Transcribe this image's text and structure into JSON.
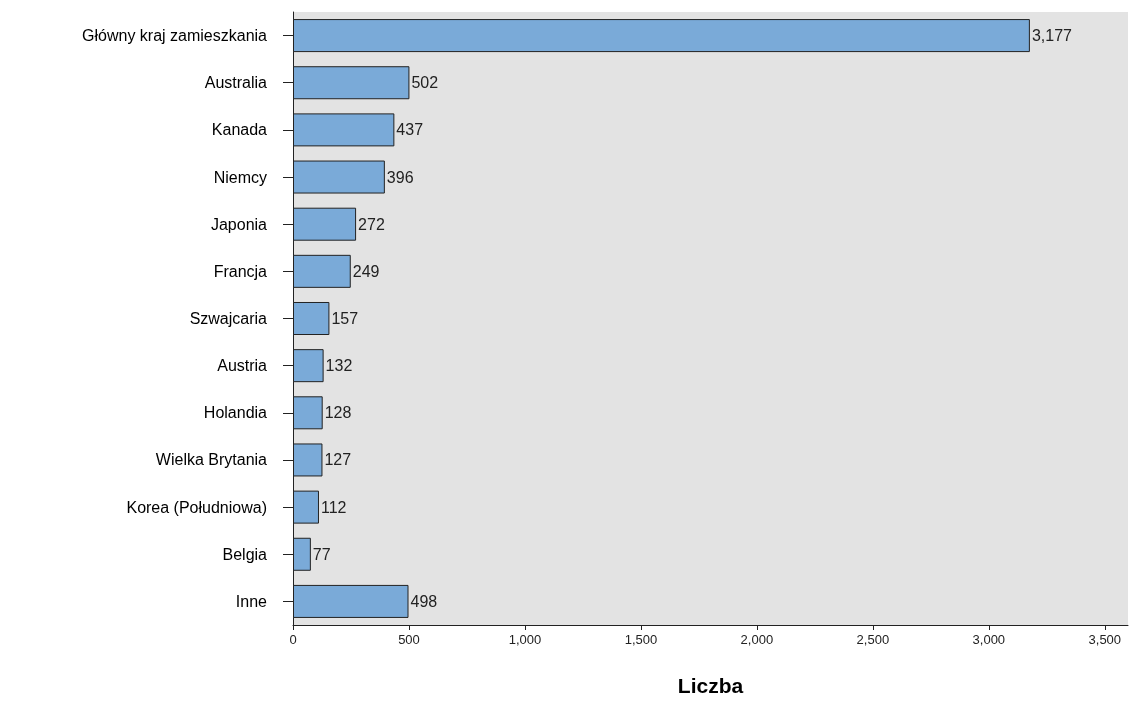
{
  "chart_data": {
    "type": "bar",
    "orientation": "horizontal",
    "xlabel": "Liczba",
    "categories": [
      "Główny kraj zamieszkania",
      "Australia",
      "Kanada",
      "Niemcy",
      "Japonia",
      "Francja",
      "Szwajcaria",
      "Austria",
      "Holandia",
      "Wielka Brytania",
      "Korea (Południowa)",
      "Belgia",
      "Inne"
    ],
    "values": [
      3177,
      502,
      437,
      396,
      272,
      249,
      157,
      132,
      128,
      127,
      112,
      77,
      498
    ],
    "value_labels": [
      "3,177",
      "502",
      "437",
      "396",
      "272",
      "249",
      "157",
      "132",
      "128",
      "127",
      "112",
      "77",
      "498"
    ],
    "color": "#7aaad8",
    "xlim": [
      0,
      3600
    ],
    "xticks": [
      0,
      500,
      {
        "value": 1000,
        "label": "1,000"
      },
      {
        "value": 1500,
        "label": "1,500"
      },
      {
        "value": 2000,
        "label": "2,000"
      },
      {
        "value": 2500,
        "label": "2,500"
      },
      {
        "value": 3000,
        "label": "3,000"
      },
      {
        "value": 3500,
        "label": "3,500"
      }
    ],
    "grid": false
  }
}
